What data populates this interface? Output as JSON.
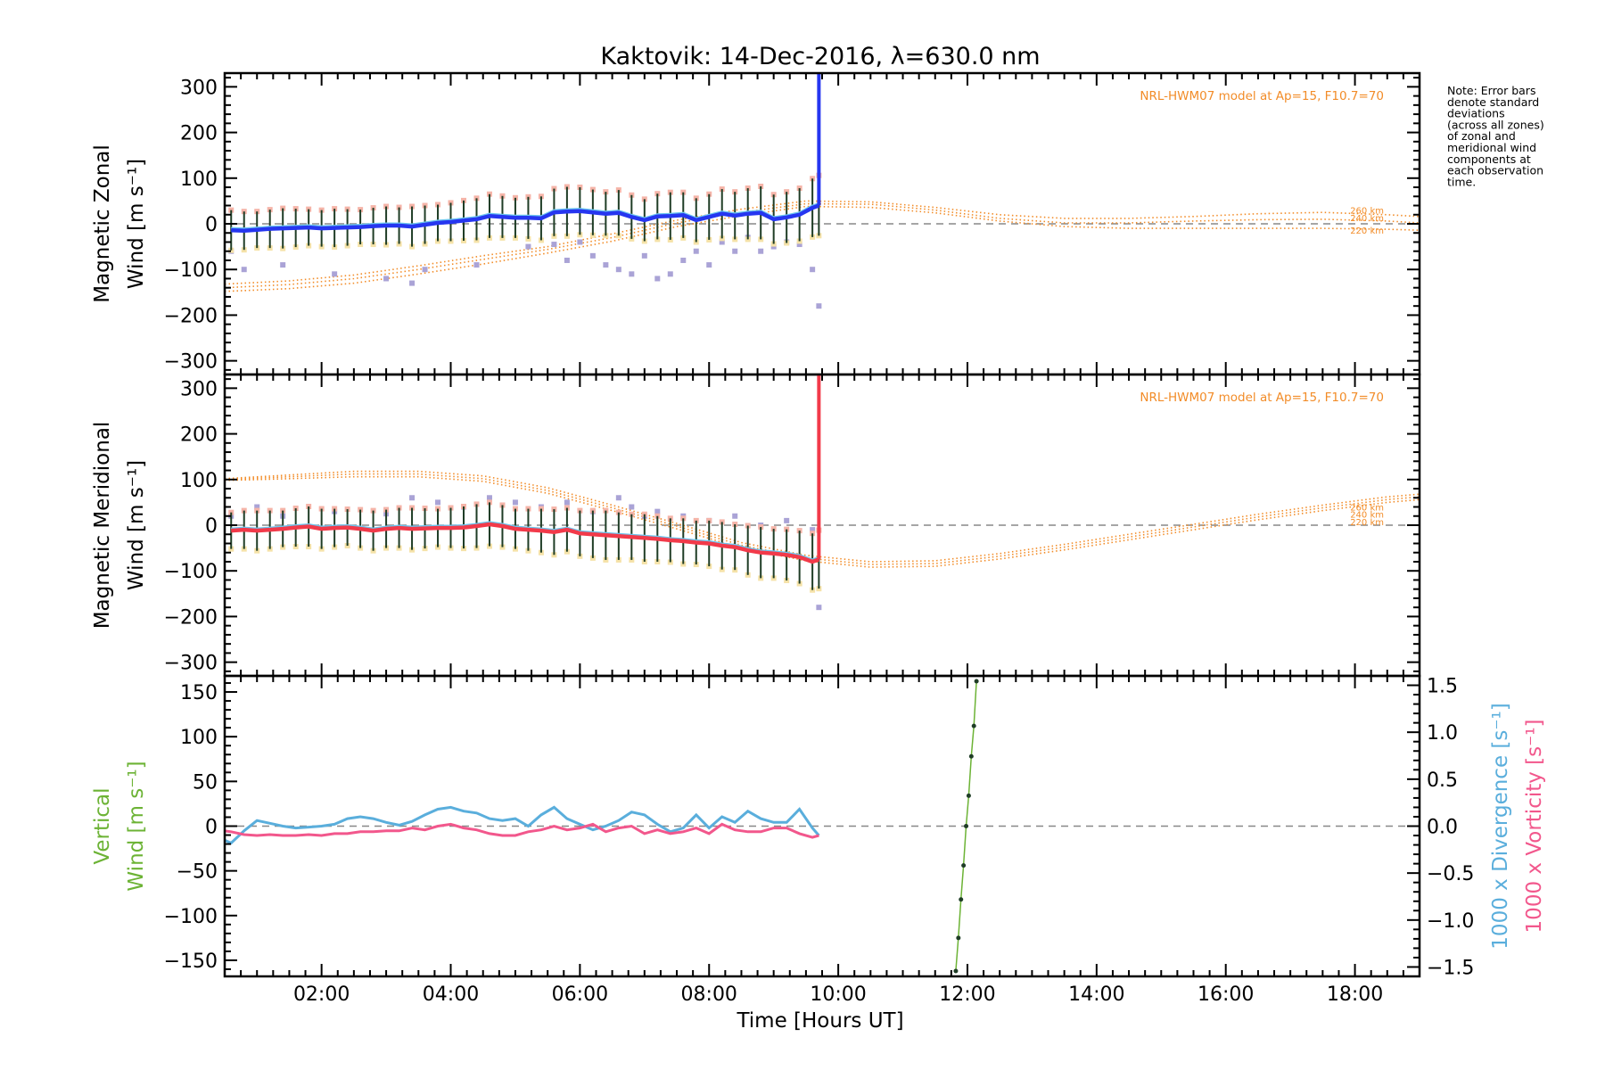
{
  "colors": {
    "zonal": "#2636f0",
    "meridional": "#f23a4a",
    "model": "#f28c28",
    "scatter": "#aaa3d6",
    "errorbar": "#1f3d26",
    "error_pink": "#f5b4a8",
    "error_yellow": "#f5e2a8",
    "light_blue": "#6cc6f0",
    "vertical": "#6cb335",
    "divergence": "#5aaedc",
    "vorticity": "#f2578c",
    "dashed": "#888888"
  },
  "chart_data": {
    "type": "line",
    "title": "Kaktovik: 14-Dec-2016, λ=630.0 nm",
    "xlabel": "Time [Hours UT]",
    "xlim": [
      0.5,
      19.0
    ],
    "x_ticks": [
      2,
      4,
      6,
      8,
      10,
      12,
      14,
      16,
      18
    ],
    "x_tick_labels": [
      "02:00",
      "04:00",
      "06:00",
      "08:00",
      "10:00",
      "12:00",
      "14:00",
      "16:00",
      "18:00"
    ],
    "note_lines": [
      "Note: Error bars",
      "denote standard",
      "deviations",
      "(across all zones)",
      "of zonal and",
      "meridional wind",
      "components at",
      "each observation",
      "time."
    ],
    "panels": [
      {
        "id": "zonal",
        "ylabel_line1": "Magnetic Zonal",
        "ylabel_line2": "Wind [m s⁻¹]",
        "ylim": [
          -330,
          330
        ],
        "y_ticks": [
          300,
          200,
          100,
          0,
          -100,
          -200,
          -300
        ],
        "y_tick_labels": [
          "300",
          "200",
          "100",
          "0",
          "−100",
          "−200",
          "−300"
        ],
        "model_label": "NRL-HWM07 model at Ap=15, F10.7=70",
        "altitude_labels": [
          "260 km",
          "240 km",
          "220 km"
        ],
        "altitude_label_values": [
          30,
          14,
          -14
        ],
        "series": {
          "x": [
            0.6,
            0.8,
            1.0,
            1.2,
            1.4,
            1.6,
            1.8,
            2.0,
            2.2,
            2.4,
            2.6,
            2.8,
            3.0,
            3.2,
            3.4,
            3.6,
            3.8,
            4.0,
            4.2,
            4.4,
            4.6,
            4.8,
            5.0,
            5.2,
            5.4,
            5.6,
            5.8,
            6.0,
            6.2,
            6.4,
            6.6,
            6.8,
            7.0,
            7.2,
            7.4,
            7.6,
            7.8,
            8.0,
            8.2,
            8.4,
            8.6,
            8.8,
            9.0,
            9.2,
            9.4,
            9.6,
            9.7
          ],
          "y": [
            -14,
            -15,
            -13,
            -11,
            -10,
            -9,
            -8,
            -10,
            -9,
            -8,
            -7,
            -5,
            -4,
            -4,
            -6,
            -2,
            2,
            4,
            7,
            10,
            17,
            15,
            13,
            13,
            12,
            25,
            27,
            28,
            25,
            22,
            24,
            15,
            8,
            16,
            17,
            19,
            8,
            15,
            22,
            18,
            22,
            24,
            10,
            14,
            20,
            35,
            40
          ],
          "err": [
            44,
            42,
            40,
            42,
            44,
            42,
            40,
            40,
            42,
            40,
            38,
            40,
            42,
            40,
            44,
            42,
            40,
            42,
            44,
            46,
            48,
            46,
            44,
            46,
            48,
            52,
            54,
            52,
            50,
            48,
            50,
            48,
            46,
            50,
            52,
            50,
            48,
            50,
            54,
            52,
            56,
            58,
            54,
            56,
            58,
            64,
            66
          ]
        },
        "scatter": {
          "x": [
            0.6,
            0.8,
            1.4,
            2.2,
            3.0,
            3.4,
            3.6,
            4.4,
            5.2,
            5.6,
            5.8,
            6.0,
            6.2,
            6.4,
            6.6,
            6.8,
            7.0,
            7.2,
            7.4,
            7.6,
            7.8,
            8.0,
            8.2,
            8.4,
            8.6,
            8.8,
            9.0,
            9.2,
            9.4,
            9.6,
            9.7
          ],
          "y": [
            -60,
            -100,
            -90,
            -110,
            -120,
            -130,
            -100,
            -90,
            -50,
            -45,
            -80,
            -40,
            -70,
            -90,
            -100,
            -110,
            -70,
            -120,
            -110,
            -80,
            -60,
            -90,
            -40,
            -60,
            -30,
            -60,
            -50,
            -40,
            -45,
            -100,
            -180
          ]
        },
        "model": {
          "x": [
            0.5,
            1.5,
            2.5,
            3.5,
            4.5,
            5.5,
            6.5,
            7.5,
            8.5,
            9.5,
            10.5,
            11.5,
            12.5,
            13.5,
            14.5,
            15.5,
            16.5,
            17.5,
            18.5,
            19.0
          ],
          "y260": [
            -132,
            -125,
            -112,
            -92,
            -70,
            -50,
            -22,
            8,
            32,
            50,
            48,
            36,
            20,
            12,
            12,
            16,
            22,
            25,
            20,
            16
          ],
          "y240": [
            -140,
            -133,
            -120,
            -100,
            -78,
            -56,
            -30,
            2,
            25,
            44,
            43,
            30,
            12,
            2,
            2,
            6,
            9,
            10,
            6,
            2
          ],
          "y220": [
            -148,
            -142,
            -130,
            -110,
            -88,
            -64,
            -38,
            -6,
            18,
            38,
            36,
            24,
            6,
            -6,
            -10,
            -10,
            -10,
            -10,
            -12,
            -14
          ]
        }
      },
      {
        "id": "meridional",
        "ylabel_line1": "Magnetic Meridional",
        "ylabel_line2": "Wind [m s⁻¹]",
        "ylim": [
          -330,
          330
        ],
        "y_ticks": [
          300,
          200,
          100,
          0,
          -100,
          -200,
          -300
        ],
        "y_tick_labels": [
          "300",
          "200",
          "100",
          "0",
          "−100",
          "−200",
          "−300"
        ],
        "model_label": "NRL-HWM07 model at Ap=15, F10.7=70",
        "altitude_labels": [
          "260 km",
          "240 km",
          "220 km"
        ],
        "altitude_label_values": [
          40,
          24,
          8
        ],
        "series": {
          "x": [
            0.6,
            0.8,
            1.0,
            1.2,
            1.4,
            1.6,
            1.8,
            2.0,
            2.2,
            2.4,
            2.6,
            2.8,
            3.0,
            3.2,
            3.4,
            3.6,
            3.8,
            4.0,
            4.2,
            4.4,
            4.6,
            4.8,
            5.0,
            5.2,
            5.4,
            5.6,
            5.8,
            6.0,
            6.2,
            6.4,
            6.6,
            6.8,
            7.0,
            7.2,
            7.4,
            7.6,
            7.8,
            8.0,
            8.2,
            8.4,
            8.6,
            8.8,
            9.0,
            9.2,
            9.4,
            9.6,
            9.7
          ],
          "y": [
            -12,
            -10,
            -12,
            -10,
            -8,
            -5,
            -3,
            -8,
            -6,
            -5,
            -8,
            -12,
            -8,
            -6,
            -8,
            -7,
            -6,
            -6,
            -5,
            -2,
            2,
            -2,
            -8,
            -10,
            -12,
            -15,
            -10,
            -18,
            -20,
            -22,
            -24,
            -26,
            -28,
            -30,
            -33,
            -35,
            -38,
            -40,
            -45,
            -48,
            -55,
            -60,
            -62,
            -65,
            -70,
            -80,
            -75
          ],
          "err": [
            40,
            42,
            44,
            42,
            40,
            42,
            44,
            44,
            42,
            40,
            42,
            44,
            42,
            44,
            46,
            44,
            42,
            44,
            46,
            48,
            48,
            46,
            44,
            46,
            48,
            50,
            48,
            50,
            52,
            54,
            52,
            50,
            52,
            50,
            48,
            50,
            48,
            50,
            52,
            50,
            54,
            56,
            54,
            56,
            58,
            62,
            64
          ]
        },
        "scatter": {
          "x": [
            0.6,
            1.0,
            1.4,
            2.2,
            3.0,
            3.4,
            3.8,
            4.2,
            4.6,
            5.0,
            5.4,
            5.8,
            6.2,
            6.6,
            6.8,
            7.0,
            7.2,
            7.6,
            8.0,
            8.4,
            8.8,
            9.2,
            9.6,
            9.7
          ],
          "y": [
            20,
            40,
            20,
            30,
            25,
            60,
            50,
            40,
            60,
            50,
            40,
            50,
            30,
            60,
            40,
            20,
            30,
            20,
            10,
            20,
            0,
            10,
            -10,
            -180
          ]
        },
        "model": {
          "x": [
            0.5,
            1.5,
            2.5,
            3.5,
            4.5,
            5.5,
            6.5,
            7.5,
            8.5,
            9.5,
            10.5,
            11.5,
            12.5,
            13.5,
            14.5,
            15.5,
            16.5,
            17.5,
            18.5,
            19.0
          ],
          "y260": [
            102,
            110,
            118,
            118,
            108,
            82,
            44,
            4,
            -38,
            -66,
            -80,
            -78,
            -62,
            -42,
            -20,
            2,
            24,
            44,
            62,
            68
          ],
          "y240": [
            100,
            106,
            112,
            112,
            102,
            76,
            38,
            -2,
            -44,
            -72,
            -86,
            -84,
            -68,
            -48,
            -26,
            -4,
            18,
            38,
            56,
            62
          ],
          "y220": [
            98,
            102,
            106,
            106,
            96,
            70,
            32,
            -8,
            -50,
            -78,
            -92,
            -90,
            -74,
            -54,
            -32,
            -10,
            12,
            32,
            50,
            56
          ]
        }
      },
      {
        "id": "vertical",
        "ylabel_line1": "Vertical",
        "ylabel_line2": "Wind [m s⁻¹]",
        "ylim": [
          -168,
          168
        ],
        "y_ticks": [
          150,
          100,
          50,
          0,
          -50,
          -100,
          -150
        ],
        "y_tick_labels": [
          "150",
          "100",
          "50",
          "0",
          "−50",
          "−100",
          "−150"
        ],
        "right_ylim": [
          -1.6,
          1.6
        ],
        "right_ticks": [
          1.5,
          1.0,
          0.5,
          0.0,
          -0.5,
          -1.0,
          -1.5
        ],
        "right_tick_labels": [
          "1.5",
          "1.0",
          "0.5",
          "0.0",
          "−0.5",
          "−1.0",
          "−1.5"
        ],
        "right_label_divergence": "1000 x Divergence [s⁻¹]",
        "right_label_vorticity": "1000 x Vorticity [s⁻¹]",
        "vertical_wind": {
          "x": [
            11.82,
            11.86,
            11.9,
            11.94,
            11.98,
            12.02,
            12.06,
            12.1,
            12.14
          ],
          "y": [
            -162,
            -125,
            -82,
            -44,
            0,
            34,
            78,
            112,
            162
          ]
        },
        "divergence": {
          "x": [
            0.5,
            0.6,
            0.8,
            1.0,
            1.2,
            1.4,
            1.6,
            1.8,
            2.0,
            2.2,
            2.4,
            2.6,
            2.8,
            3.0,
            3.2,
            3.4,
            3.6,
            3.8,
            4.0,
            4.2,
            4.4,
            4.6,
            4.8,
            5.0,
            5.2,
            5.4,
            5.6,
            5.8,
            6.0,
            6.2,
            6.4,
            6.6,
            6.8,
            7.0,
            7.2,
            7.4,
            7.6,
            7.8,
            8.0,
            8.2,
            8.4,
            8.6,
            8.8,
            9.0,
            9.2,
            9.4,
            9.6,
            9.7
          ],
          "y": [
            -0.15,
            -0.18,
            -0.05,
            0.06,
            0.03,
            0.0,
            -0.02,
            -0.01,
            0.0,
            0.02,
            0.08,
            0.1,
            0.08,
            0.04,
            0.01,
            0.05,
            0.12,
            0.18,
            0.2,
            0.16,
            0.14,
            0.08,
            0.06,
            0.08,
            0.0,
            0.12,
            0.2,
            0.08,
            0.02,
            -0.04,
            0.0,
            0.06,
            0.15,
            0.12,
            0.02,
            -0.06,
            -0.02,
            0.12,
            -0.02,
            0.1,
            0.04,
            0.16,
            0.08,
            0.04,
            0.04,
            0.18,
            -0.02,
            -0.1
          ]
        },
        "vorticity": {
          "x": [
            0.5,
            0.6,
            0.8,
            1.0,
            1.2,
            1.4,
            1.6,
            1.8,
            2.0,
            2.2,
            2.4,
            2.6,
            2.8,
            3.0,
            3.2,
            3.4,
            3.6,
            3.8,
            4.0,
            4.2,
            4.4,
            4.6,
            4.8,
            5.0,
            5.2,
            5.4,
            5.6,
            5.8,
            6.0,
            6.2,
            6.4,
            6.6,
            6.8,
            7.0,
            7.2,
            7.4,
            7.6,
            7.8,
            8.0,
            8.2,
            8.4,
            8.6,
            8.8,
            9.0,
            9.2,
            9.4,
            9.6,
            9.7
          ],
          "y": [
            -0.05,
            -0.06,
            -0.09,
            -0.1,
            -0.09,
            -0.1,
            -0.1,
            -0.09,
            -0.1,
            -0.08,
            -0.08,
            -0.06,
            -0.06,
            -0.05,
            -0.05,
            -0.02,
            -0.04,
            0.0,
            0.02,
            -0.02,
            -0.04,
            -0.08,
            -0.1,
            -0.1,
            -0.06,
            -0.04,
            0.0,
            -0.04,
            -0.02,
            0.02,
            -0.06,
            -0.02,
            0.0,
            -0.08,
            -0.04,
            -0.08,
            -0.06,
            -0.02,
            -0.08,
            0.02,
            -0.04,
            -0.06,
            -0.06,
            -0.02,
            -0.02,
            -0.08,
            -0.12,
            -0.1
          ]
        }
      }
    ]
  }
}
